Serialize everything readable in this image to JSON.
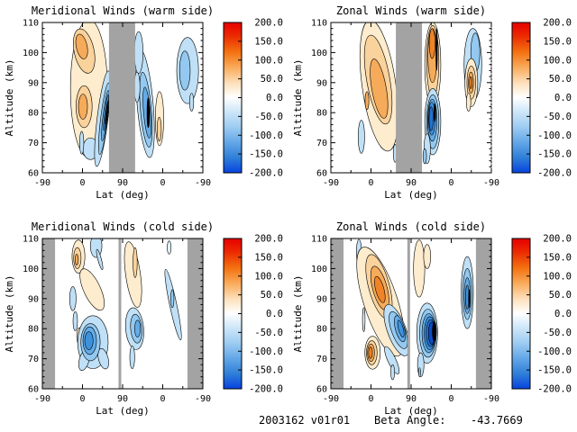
{
  "footer": {
    "date_version": "2003162 v01r01",
    "beta_label": "Beta Angle:",
    "beta_value": "-43.7669"
  },
  "chart_data": {
    "type": "filled_contour_grid",
    "units": "wind speed (m/s) on color scale",
    "gray": "#a3a3a3",
    "x_axis": {
      "label": "Lat (deg)",
      "ticks": [
        "-90",
        "0",
        "90",
        "0",
        "-90"
      ],
      "description": "latitude along orbit track: ascending -90 to 90, then descending 90 to -90"
    },
    "y_axis": {
      "label": "Altitude (km)",
      "ticks": [
        "110",
        "100",
        "90",
        "80",
        "70",
        "60"
      ],
      "range": [
        60,
        110
      ]
    },
    "colorbar": {
      "range": [
        -200,
        200
      ],
      "ticks": [
        "200.0",
        "150.0",
        "100.0",
        "50.0",
        "0.0",
        "-50.0",
        "-100.0",
        "-150.0",
        "-200.0"
      ],
      "gradient": [
        [
          "0",
          "#e60000"
        ],
        [
          "0.09",
          "#ec2a00"
        ],
        [
          "0.2",
          "#f47312"
        ],
        [
          "0.3",
          "#f9ac5c"
        ],
        [
          "0.41",
          "#fde3c2"
        ],
        [
          "0.5",
          "#ffffff"
        ],
        [
          "0.59",
          "#cfe7f9"
        ],
        [
          "0.69",
          "#a0cef2"
        ],
        [
          "0.8",
          "#62a6e7"
        ],
        [
          "0.9",
          "#2f7fd8"
        ],
        [
          "1",
          "#0743e0"
        ]
      ]
    },
    "level_colors": {
      "o1": "#fdeccd",
      "o2": "#fad29c",
      "o3": "#f5ab5a",
      "o4": "#ef8326",
      "o5": "#e85a0e",
      "b1": "#e2f1fb",
      "b2": "#bfe0f6",
      "b3": "#93c9f0",
      "b4": "#64ace8",
      "b5": "#3d92de",
      "b6": "#2272d2",
      "b7": "#0d4cc4",
      "k": "#000000"
    },
    "level_values_mps": {
      "o1": 15,
      "o2": 40,
      "o3": 65,
      "o4": 90,
      "o5": 120,
      "b1": -10,
      "b2": -35,
      "b3": -60,
      "b4": -85,
      "b5": -110,
      "b6": -135,
      "b7": -160,
      "k": -200
    },
    "feature_format": "[x_frac_along_lat_axis, altitude_km_center, x_halfwidth_frac, alt_halfheight_km, level_key, rotation_deg]",
    "panels": [
      {
        "id": "meridional-warm",
        "title": "Meridional Winds (warm side)",
        "col": 0,
        "row": 0,
        "gray_bands": [
          [
            0.415,
            0.578
          ]
        ],
        "gray_lines": [],
        "right_edge_dashed": false,
        "features": [
          [
            0.29,
            88,
            0.115,
            23,
            "o1",
            0
          ],
          [
            0.26,
            100.5,
            0.062,
            7.5,
            "o2",
            -12
          ],
          [
            0.245,
            102,
            0.034,
            4.2,
            "o3",
            -12
          ],
          [
            0.26,
            82,
            0.05,
            7,
            "o2",
            0
          ],
          [
            0.253,
            82,
            0.028,
            4.2,
            "o3",
            0
          ],
          [
            0.3,
            68,
            0.048,
            3.6,
            "b2",
            0
          ],
          [
            0.245,
            70,
            0.013,
            3.8,
            "b2",
            0
          ],
          [
            0.375,
            78,
            0.034,
            16,
            "b2",
            7
          ],
          [
            0.385,
            78,
            0.022,
            12,
            "b3",
            7
          ],
          [
            0.392,
            79,
            0.014,
            8.5,
            "b4",
            7
          ],
          [
            0.397,
            80,
            0.008,
            6,
            "b5",
            7
          ],
          [
            0.401,
            80,
            0.0045,
            4,
            "k",
            7
          ],
          [
            0.64,
            83,
            0.05,
            18,
            "b2",
            -5
          ],
          [
            0.645,
            81,
            0.034,
            12.5,
            "b3",
            -5
          ],
          [
            0.652,
            80,
            0.021,
            8.5,
            "b4",
            -5
          ],
          [
            0.66,
            80,
            0.008,
            5,
            "k",
            0
          ],
          [
            0.6,
            100,
            0.027,
            7,
            "b2",
            0
          ],
          [
            0.59,
            88.5,
            0.018,
            5,
            "b2",
            0
          ],
          [
            0.73,
            78,
            0.026,
            9,
            "o1",
            0
          ],
          [
            0.728,
            74.5,
            0.013,
            4,
            "o2",
            0
          ],
          [
            0.905,
            94,
            0.068,
            11,
            "b2",
            0
          ],
          [
            0.888,
            94,
            0.033,
            6.5,
            "b3",
            0
          ],
          [
            0.93,
            83.5,
            0.013,
            3,
            "b2",
            0
          ]
        ]
      },
      {
        "id": "zonal-warm",
        "title": "Zonal Winds (warm side)",
        "col": 1,
        "row": 0,
        "gray_bands": [
          [
            0.405,
            0.568
          ]
        ],
        "gray_lines": [],
        "right_edge_dashed": true,
        "features": [
          [
            0.3,
            89,
            0.105,
            22,
            "o1",
            -8
          ],
          [
            0.295,
            91,
            0.072,
            15,
            "o2",
            -10
          ],
          [
            0.3,
            88,
            0.045,
            10,
            "o3",
            -10
          ],
          [
            0.225,
            84,
            0.012,
            3,
            "o3",
            0
          ],
          [
            0.19,
            72,
            0.02,
            5.5,
            "b2",
            0
          ],
          [
            0.4,
            66.5,
            0.011,
            3,
            "b2",
            0
          ],
          [
            0.635,
            96,
            0.05,
            14,
            "o1",
            0
          ],
          [
            0.635,
            97,
            0.038,
            12,
            "o2",
            0
          ],
          [
            0.633,
            99,
            0.028,
            9,
            "o3",
            0
          ],
          [
            0.631,
            103,
            0.018,
            5,
            "o4",
            0
          ],
          [
            0.659,
            101,
            0.005,
            7,
            "k",
            0
          ],
          [
            0.635,
            77,
            0.05,
            11,
            "b2",
            0
          ],
          [
            0.635,
            77,
            0.038,
            9,
            "b3",
            0
          ],
          [
            0.632,
            77.5,
            0.029,
            7,
            "b4",
            0
          ],
          [
            0.629,
            78,
            0.021,
            5.5,
            "b5",
            0
          ],
          [
            0.625,
            78,
            0.013,
            4,
            "b6",
            0
          ],
          [
            0.648,
            80,
            0.006,
            3,
            "k",
            0
          ],
          [
            0.6,
            68,
            0.02,
            5,
            "b2",
            0
          ],
          [
            0.585,
            65.5,
            0.011,
            2.5,
            "b3",
            0
          ],
          [
            0.885,
            96,
            0.055,
            12,
            "b2",
            0
          ],
          [
            0.9,
            100,
            0.028,
            6.5,
            "b3",
            0
          ],
          [
            0.875,
            90,
            0.04,
            8,
            "o1",
            0
          ],
          [
            0.875,
            90,
            0.027,
            5.5,
            "o2",
            0
          ],
          [
            0.873,
            90,
            0.016,
            3.5,
            "o3",
            0
          ],
          [
            0.872,
            90,
            0.008,
            2,
            "o4",
            0
          ],
          [
            0.858,
            83.5,
            0.014,
            3,
            "o1",
            0
          ]
        ]
      },
      {
        "id": "meridional-cold",
        "title": "Meridional Winds (cold side)",
        "col": 0,
        "row": 1,
        "gray_bands": [
          [
            0,
            0.079
          ],
          [
            0.904,
            1
          ]
        ],
        "gray_lines": [
          0.483
        ],
        "right_edge_dashed": false,
        "features": [
          [
            0.225,
            104,
            0.04,
            5.5,
            "o1",
            0
          ],
          [
            0.218,
            103.5,
            0.023,
            3.5,
            "o2",
            0
          ],
          [
            0.214,
            103,
            0.01,
            1.8,
            "o3",
            0
          ],
          [
            0.335,
            107.5,
            0.036,
            3.8,
            "b2",
            0
          ],
          [
            0.357,
            103,
            0.011,
            3.5,
            "b2",
            -15
          ],
          [
            0.31,
            93,
            0.052,
            7.5,
            "o1",
            -25
          ],
          [
            0.19,
            90,
            0.02,
            4,
            "b2",
            0
          ],
          [
            0.205,
            82.5,
            0.014,
            3.2,
            "b2",
            0
          ],
          [
            0.23,
            77.5,
            0.016,
            2.8,
            "o1",
            0
          ],
          [
            0.315,
            75.5,
            0.095,
            8.8,
            "b2",
            0
          ],
          [
            0.26,
            69.5,
            0.03,
            3.5,
            "b2",
            15
          ],
          [
            0.38,
            70,
            0.03,
            3.5,
            "b2",
            -15
          ],
          [
            0.3,
            75.5,
            0.06,
            6.2,
            "b3",
            0
          ],
          [
            0.295,
            76,
            0.042,
            4.6,
            "b4",
            0
          ],
          [
            0.29,
            76,
            0.026,
            3,
            "b5",
            0
          ],
          [
            0.565,
            98,
            0.046,
            11,
            "o1",
            -8
          ],
          [
            0.578,
            102,
            0.013,
            5,
            "o2",
            0
          ],
          [
            0.575,
            80,
            0.056,
            7,
            "b2",
            -5
          ],
          [
            0.585,
            80,
            0.035,
            4.8,
            "b3",
            -5
          ],
          [
            0.593,
            80,
            0.018,
            2.8,
            "b4",
            0
          ],
          [
            0.56,
            70.5,
            0.015,
            3.8,
            "b2",
            0
          ],
          [
            0.815,
            88,
            0.022,
            12,
            "b2",
            -12
          ],
          [
            0.81,
            90,
            0.01,
            3,
            "b3",
            0
          ],
          [
            0.79,
            107,
            0.012,
            2.2,
            "b1",
            0
          ]
        ]
      },
      {
        "id": "zonal-cold",
        "title": "Zonal Winds (cold side)",
        "col": 1,
        "row": 1,
        "gray_bands": [
          [
            0,
            0.079
          ],
          [
            0.904,
            1
          ]
        ],
        "gray_lines": [
          0.485
        ],
        "right_edge_dashed": false,
        "features": [
          [
            0.175,
            105.5,
            0.016,
            4.2,
            "b2",
            0
          ],
          [
            0.31,
            89,
            0.105,
            19,
            "o1",
            -18
          ],
          [
            0.3,
            94,
            0.065,
            11,
            "o2",
            -15
          ],
          [
            0.305,
            93.5,
            0.045,
            7.5,
            "o3",
            -15
          ],
          [
            0.305,
            93,
            0.026,
            4.5,
            "o4",
            -15
          ],
          [
            0.26,
            72,
            0.048,
            5.5,
            "o1",
            0
          ],
          [
            0.255,
            72,
            0.033,
            4,
            "o2",
            0
          ],
          [
            0.25,
            72,
            0.022,
            2.9,
            "o3",
            0
          ],
          [
            0.247,
            72,
            0.012,
            1.9,
            "o4",
            0
          ],
          [
            0.205,
            83,
            0.008,
            4,
            "b1",
            0
          ],
          [
            0.55,
            100,
            0.035,
            9.5,
            "o1",
            0
          ],
          [
            0.6,
            104,
            0.022,
            4,
            "o1",
            0
          ],
          [
            0.41,
            79.5,
            0.058,
            9,
            "b2",
            -20
          ],
          [
            0.42,
            79.5,
            0.042,
            6.5,
            "b3",
            -20
          ],
          [
            0.43,
            80,
            0.028,
            4.5,
            "b4",
            -15
          ],
          [
            0.436,
            80,
            0.015,
            2.9,
            "b5",
            -15
          ],
          [
            0.38,
            69.5,
            0.025,
            5,
            "b2",
            -25
          ],
          [
            0.385,
            65.5,
            0.012,
            2.5,
            "b2",
            0
          ],
          [
            0.6,
            78.5,
            0.065,
            10,
            "b2",
            0
          ],
          [
            0.605,
            78.5,
            0.052,
            8,
            "b3",
            0
          ],
          [
            0.61,
            78.5,
            0.042,
            6.5,
            "b4",
            0
          ],
          [
            0.616,
            78.5,
            0.034,
            5.5,
            "b5",
            0
          ],
          [
            0.621,
            78.5,
            0.027,
            4.5,
            "b6",
            0
          ],
          [
            0.628,
            78.5,
            0.02,
            3.7,
            "b7",
            0
          ],
          [
            0.645,
            79,
            0.013,
            3.2,
            "k",
            0
          ],
          [
            0.56,
            68,
            0.02,
            4,
            "b2",
            0
          ],
          [
            0.553,
            65.5,
            0.006,
            1.5,
            "b3",
            0
          ],
          [
            0.85,
            92,
            0.038,
            12,
            "b2",
            0
          ],
          [
            0.85,
            91.5,
            0.028,
            8.5,
            "b3",
            0
          ],
          [
            0.85,
            91,
            0.019,
            6,
            "b4",
            0
          ],
          [
            0.85,
            90.5,
            0.011,
            4,
            "b5",
            0
          ],
          [
            0.863,
            90,
            0.005,
            3,
            "k",
            0
          ]
        ]
      }
    ]
  }
}
